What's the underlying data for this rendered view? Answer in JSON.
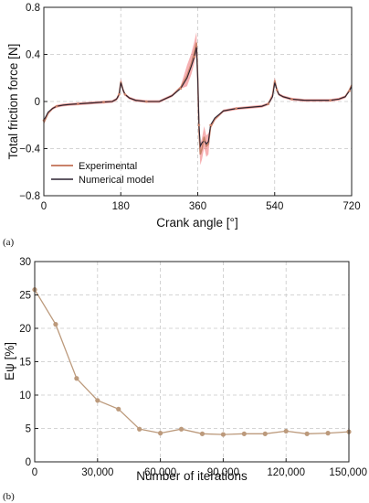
{
  "colors": {
    "experimental": "#c9826a",
    "experimental_band": "#ee6f73",
    "numerical": "#2b2230",
    "iterations": "#bc9a7c",
    "grid": "#c8c8c8",
    "axis": "#222222"
  },
  "chart_data": [
    {
      "type": "line",
      "panel_label": "(a)",
      "xlabel": "Crank angle [°]",
      "ylabel": "Total friction force [N]",
      "xlim": [
        0,
        720
      ],
      "ylim": [
        -0.8,
        0.8
      ],
      "xticks": [
        0,
        180,
        360,
        540,
        720
      ],
      "yticks": [
        -0.8,
        -0.4,
        0,
        0.4,
        0.8
      ],
      "ytick_labels": [
        "−0.8",
        "−0.4",
        "0",
        "0.4",
        "0.8"
      ],
      "grid": true,
      "legend_position": "bottom-left",
      "series": [
        {
          "name": "Experimental",
          "x": [
            0,
            10,
            20,
            30,
            45,
            60,
            80,
            100,
            120,
            140,
            160,
            170,
            176,
            180,
            185,
            190,
            200,
            215,
            240,
            270,
            300,
            320,
            335,
            345,
            352,
            357,
            360,
            363,
            366,
            370,
            375,
            380,
            385,
            390,
            400,
            420,
            450,
            480,
            510,
            525,
            535,
            540,
            545,
            550,
            560,
            580,
            610,
            640,
            670,
            690,
            705,
            715,
            720
          ],
          "y": [
            -0.18,
            -0.1,
            -0.06,
            -0.04,
            -0.03,
            -0.025,
            -0.02,
            -0.015,
            -0.01,
            -0.005,
            0.0,
            0.02,
            0.06,
            0.17,
            0.1,
            0.06,
            0.03,
            0.01,
            0.0,
            0.0,
            0.05,
            0.12,
            0.22,
            0.32,
            0.42,
            0.5,
            0.2,
            -0.25,
            -0.45,
            -0.4,
            -0.3,
            -0.38,
            -0.36,
            -0.22,
            -0.15,
            -0.08,
            -0.06,
            -0.05,
            -0.04,
            -0.02,
            0.05,
            0.18,
            0.1,
            0.06,
            0.04,
            0.02,
            0.01,
            0.01,
            0.01,
            0.02,
            0.04,
            0.1,
            0.14
          ]
        },
        {
          "name": "Numerical model",
          "x": [
            0,
            10,
            20,
            30,
            45,
            60,
            80,
            100,
            120,
            140,
            160,
            170,
            176,
            180,
            185,
            190,
            200,
            215,
            240,
            270,
            300,
            320,
            335,
            345,
            352,
            357,
            360,
            363,
            366,
            370,
            375,
            380,
            385,
            390,
            400,
            420,
            450,
            480,
            510,
            525,
            535,
            540,
            545,
            550,
            560,
            580,
            610,
            640,
            670,
            690,
            705,
            715,
            720
          ],
          "y": [
            -0.16,
            -0.09,
            -0.06,
            -0.04,
            -0.03,
            -0.025,
            -0.02,
            -0.015,
            -0.01,
            -0.005,
            0.0,
            0.02,
            0.06,
            0.16,
            0.1,
            0.06,
            0.03,
            0.01,
            0.0,
            0.0,
            0.05,
            0.11,
            0.2,
            0.3,
            0.38,
            0.46,
            0.2,
            -0.2,
            -0.38,
            -0.35,
            -0.33,
            -0.36,
            -0.34,
            -0.2,
            -0.14,
            -0.08,
            -0.06,
            -0.05,
            -0.04,
            -0.02,
            0.04,
            0.16,
            0.1,
            0.06,
            0.04,
            0.02,
            0.01,
            0.01,
            0.01,
            0.02,
            0.04,
            0.09,
            0.13
          ]
        }
      ]
    },
    {
      "type": "line",
      "panel_label": "(b)",
      "xlabel": "Number of iterations",
      "ylabel": "Eψ [%]",
      "xlim": [
        0,
        150000
      ],
      "ylim": [
        0,
        30
      ],
      "xticks": [
        0,
        30000,
        60000,
        90000,
        120000,
        150000
      ],
      "xtick_labels": [
        "0",
        "30,000",
        "60,000",
        "90,000",
        "120,000",
        "150,000"
      ],
      "yticks": [
        0,
        5,
        10,
        15,
        20,
        25,
        30
      ],
      "grid": true,
      "series": [
        {
          "x": [
            0,
            10000,
            20000,
            30000,
            40000,
            50000,
            60000,
            70000,
            80000,
            90000,
            100000,
            110000,
            120000,
            130000,
            140000,
            150000
          ],
          "y": [
            25.8,
            20.6,
            12.5,
            9.2,
            7.9,
            4.9,
            4.3,
            4.9,
            4.2,
            4.1,
            4.2,
            4.2,
            4.6,
            4.2,
            4.3,
            4.5
          ]
        }
      ]
    }
  ]
}
